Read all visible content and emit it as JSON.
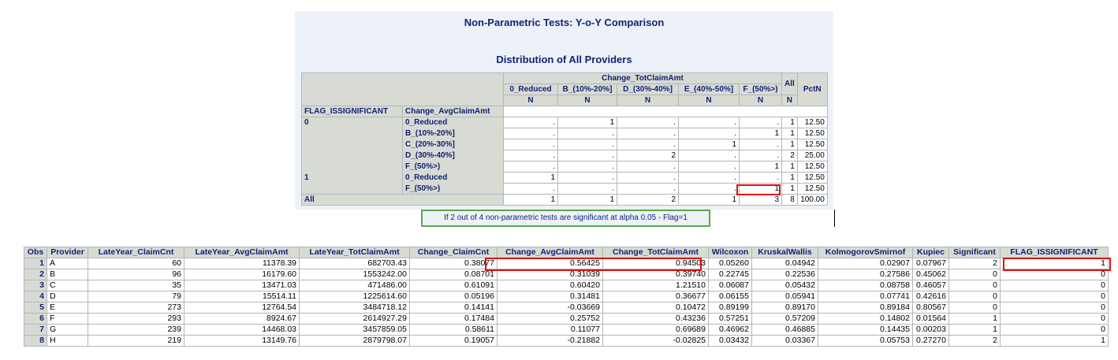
{
  "report": {
    "title": "Non-Parametric Tests: Y-o-Y Comparison",
    "subtitle": "Distribution of All Providers",
    "crosstab": {
      "col_group": "Change_TotClaimAmt",
      "col_all": "All",
      "col_pct": "PctN",
      "columns": [
        "0_Reduced",
        "B_(10%-20%]",
        "D_(30%-40%]",
        "E_(40%-50%]",
        "F_(50%>)"
      ],
      "stat": "N",
      "row_var1": "FLAG_ISSIGNIFICANT",
      "row_var2": "Change_AvgClaimAmt",
      "rows": [
        {
          "g": "0",
          "c": "0_Reduced",
          "v": [
            ".",
            "1",
            ".",
            ".",
            "."
          ],
          "all": "1",
          "pct": "12.50"
        },
        {
          "g": "",
          "c": "B_(10%-20%]",
          "v": [
            ".",
            ".",
            ".",
            ".",
            "1"
          ],
          "all": "1",
          "pct": "12.50"
        },
        {
          "g": "",
          "c": "C_(20%-30%]",
          "v": [
            ".",
            ".",
            ".",
            "1",
            "."
          ],
          "all": "1",
          "pct": "12.50"
        },
        {
          "g": "",
          "c": "D_(30%-40%]",
          "v": [
            ".",
            ".",
            "2",
            ".",
            "."
          ],
          "all": "2",
          "pct": "25.00"
        },
        {
          "g": "",
          "c": "F_(50%>)",
          "v": [
            ".",
            ".",
            ".",
            ".",
            "1"
          ],
          "all": "1",
          "pct": "12.50"
        },
        {
          "g": "1",
          "c": "0_Reduced",
          "v": [
            "1",
            ".",
            ".",
            ".",
            "."
          ],
          "all": "1",
          "pct": "12.50"
        },
        {
          "g": "",
          "c": "F_(50%>)",
          "v": [
            ".",
            ".",
            ".",
            ".",
            "1"
          ],
          "all": "1",
          "pct": "12.50"
        }
      ],
      "total": {
        "label": "All",
        "v": [
          "1",
          "1",
          "2",
          "1",
          "3"
        ],
        "all": "8",
        "pct": "100.00"
      }
    },
    "note": "If 2 out of 4 non-parametric tests are significant at alpha 0.05 - Flag=1"
  },
  "data_table": {
    "headers": [
      "Obs",
      "Provider",
      "LateYear_ClaimCnt",
      "LateYear_AvgClaimAmt",
      "LateYear_TotClaimAmt",
      "Change_ClaimCnt",
      "Change_AvgClaimAmt",
      "Change_TotClaimAmt",
      "Wilcoxon",
      "KruskalWallis",
      "KolmogorovSmirnof",
      "Kupiec",
      "Significant",
      "FLAG_ISSIGNIFICANT"
    ],
    "rows": [
      [
        "1",
        "A",
        "60",
        "11378.39",
        "682703.43",
        "0.38077",
        "0.56425",
        "0.94503",
        "0.05260",
        "0.04942",
        "0.02907",
        "0.07967",
        "2",
        "1"
      ],
      [
        "2",
        "B",
        "96",
        "16179.60",
        "1553242.00",
        "0.08701",
        "0.31039",
        "0.39740",
        "0.22745",
        "0.22536",
        "0.27586",
        "0.45062",
        "0",
        "0"
      ],
      [
        "3",
        "C",
        "35",
        "13471.03",
        "471486.00",
        "0.61091",
        "0.60420",
        "1.21510",
        "0.06087",
        "0.05432",
        "0.08758",
        "0.46057",
        "0",
        "0"
      ],
      [
        "4",
        "D",
        "79",
        "15514.11",
        "1225614.60",
        "0.05196",
        "0.31481",
        "0.36677",
        "0.06155",
        "0.05941",
        "0.07741",
        "0.42616",
        "0",
        "0"
      ],
      [
        "5",
        "E",
        "273",
        "12764.54",
        "3484718.12",
        "0.14141",
        "-0.03669",
        "0.10472",
        "0.89199",
        "0.89170",
        "0.89184",
        "0.80567",
        "0",
        "0"
      ],
      [
        "6",
        "F",
        "293",
        "8924.67",
        "2614927.29",
        "0.17484",
        "0.25752",
        "0.43236",
        "0.57251",
        "0.57209",
        "0.14802",
        "0.01564",
        "1",
        "0"
      ],
      [
        "7",
        "G",
        "239",
        "14468.03",
        "3457859.05",
        "0.58611",
        "0.11077",
        "0.69689",
        "0.46962",
        "0.46885",
        "0.14435",
        "0.00203",
        "1",
        "0"
      ],
      [
        "8",
        "H",
        "219",
        "13149.76",
        "2879798.07",
        "0.19057",
        "-0.21882",
        "-0.02825",
        "0.03432",
        "0.03367",
        "0.05753",
        "0.27270",
        "2",
        "1"
      ]
    ]
  },
  "colors": {
    "header_bg": "#d8dbd3",
    "header_text": "#112277",
    "panel_bg": "#edf2f9",
    "highlight_red": "#e01010",
    "note_border": "#5aa84a"
  }
}
